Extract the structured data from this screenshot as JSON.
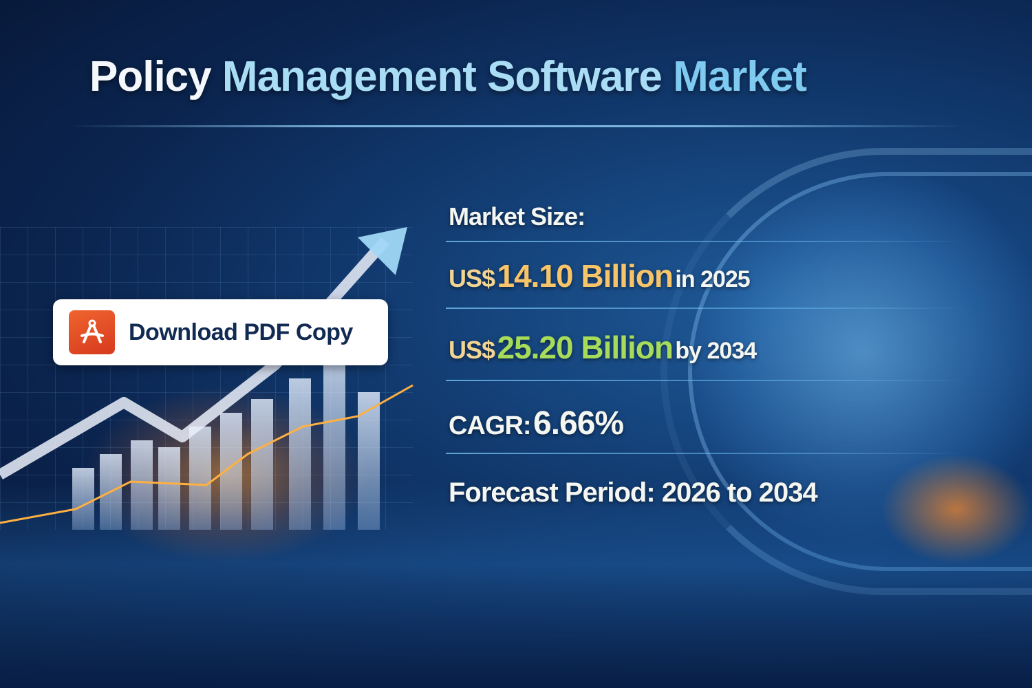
{
  "title": {
    "words": [
      "Policy",
      "Management",
      "Software",
      "Market"
    ]
  },
  "download_button": {
    "label": "Download PDF Copy",
    "icon": "pdf-document-icon",
    "icon_color": "#e4502a"
  },
  "stats": {
    "market_size_label": "Market Size:",
    "current": {
      "currency": "US$",
      "value": "14.10 Billion",
      "suffix": "in 2025"
    },
    "forecast": {
      "currency": "US$",
      "value": "25.20 Billion",
      "suffix": "by 2034"
    },
    "cagr": {
      "label": "CAGR:",
      "value": "6.66%"
    },
    "forecast_period": {
      "label": "Forecast Period:",
      "value": "2026 to 2034"
    }
  },
  "colors": {
    "background": "#0b2550",
    "current_value": "#f7c46a",
    "forecast_value": "#a6dc5a",
    "title_accent": "#7fcaf0"
  }
}
